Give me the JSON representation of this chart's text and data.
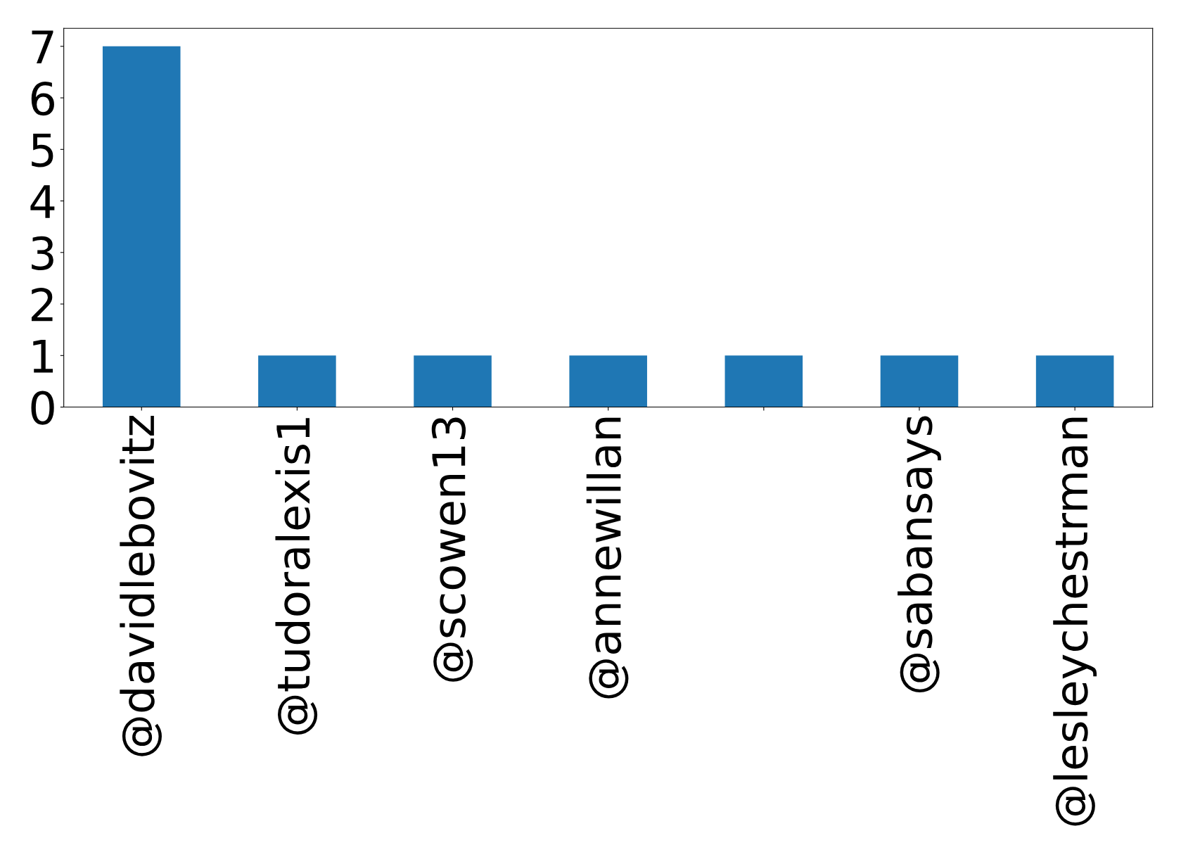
{
  "chart_data": {
    "type": "bar",
    "categories": [
      "@davidlebovitz",
      "@tudoralexis1",
      "@scowen13",
      "@annewillan",
      null,
      "@sabansays",
      "@lesleychestrman"
    ],
    "values": [
      7,
      1,
      1,
      1,
      1,
      1,
      1
    ],
    "color": "#1f77b4",
    "ylim": [
      0,
      7.35
    ],
    "yticks": [
      0,
      1,
      2,
      3,
      4,
      5,
      6,
      7
    ],
    "grid": false,
    "legend": false
  }
}
